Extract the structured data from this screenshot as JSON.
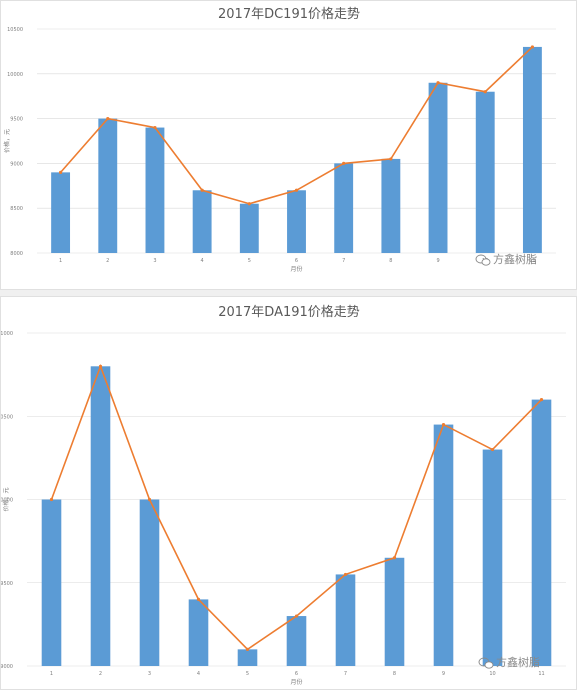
{
  "chart_data": [
    {
      "type": "bar",
      "title": "2017年DC191价格走势",
      "xlabel": "月份",
      "ylabel": "价格，元",
      "categories": [
        "1",
        "2",
        "3",
        "4",
        "5",
        "6",
        "7",
        "8",
        "9",
        "10",
        "11"
      ],
      "series": [
        {
          "values": [
            8900,
            9500,
            9400,
            8700,
            8550,
            8700,
            9000,
            9050,
            9900,
            9800,
            10300
          ]
        }
      ],
      "line_overlay": true,
      "yticks": [
        "8000",
        "8500",
        "9000",
        "9500",
        "10000",
        "10500"
      ],
      "ylim": [
        8000,
        10500
      ],
      "grid": true,
      "bar_color": "#5b9bd5",
      "line_color": "#ed7d31",
      "watermark": "方鑫树脂"
    },
    {
      "type": "bar",
      "title": "2017年DA191价格走势",
      "xlabel": "月份",
      "ylabel": "价格，元",
      "categories": [
        "1",
        "2",
        "3",
        "4",
        "5",
        "6",
        "7",
        "8",
        "9",
        "10",
        "11"
      ],
      "series": [
        {
          "values": [
            10000,
            10800,
            10000,
            9400,
            9100,
            9300,
            9550,
            9650,
            10450,
            10300,
            10600
          ]
        }
      ],
      "line_overlay": true,
      "yticks": [
        "9000",
        "9500",
        "10000",
        "10500",
        "11000"
      ],
      "ylim": [
        9000,
        11000
      ],
      "grid": true,
      "bar_color": "#5b9bd5",
      "line_color": "#ed7d31",
      "watermark": "方鑫树脂"
    }
  ]
}
